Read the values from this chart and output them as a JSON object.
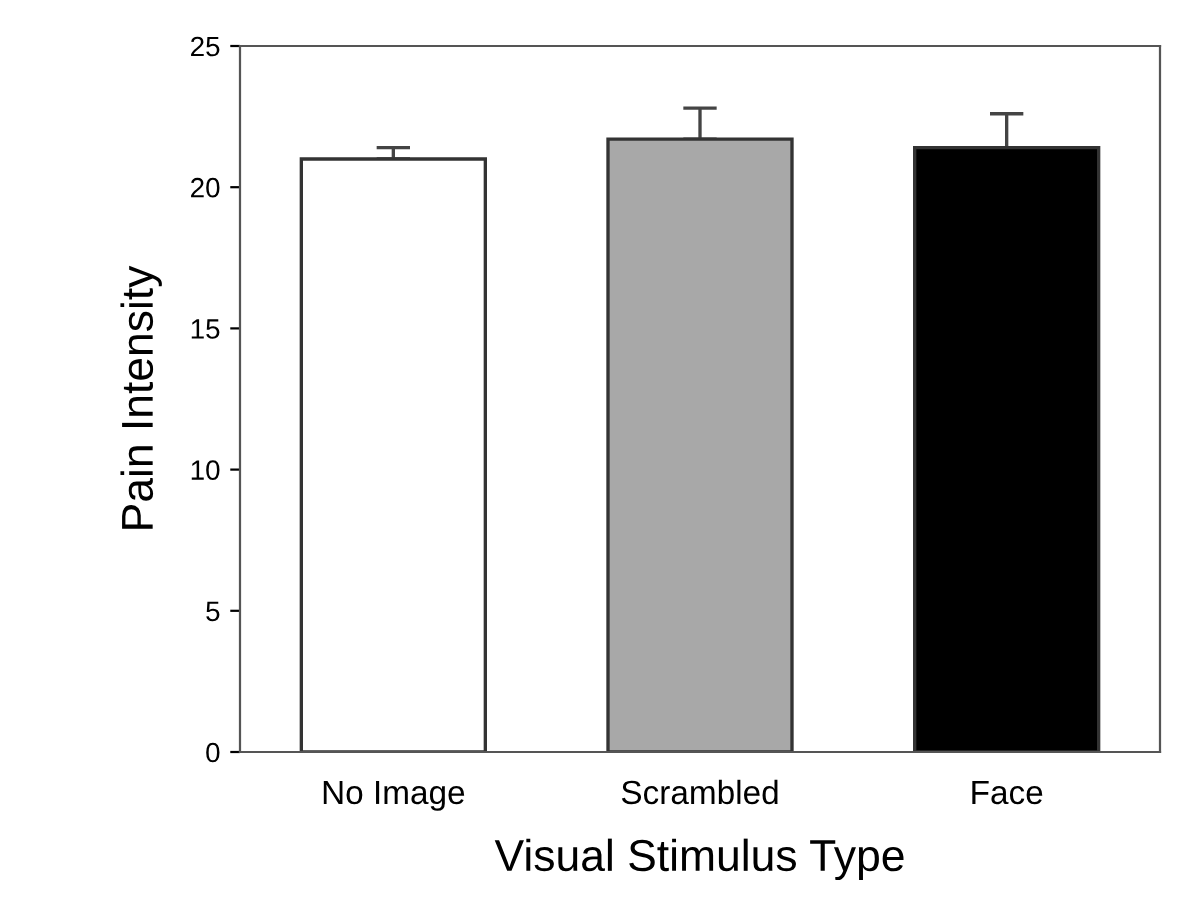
{
  "chart_data": {
    "type": "bar",
    "xlabel": "Visual Stimulus Type",
    "ylabel": "Pain Intensity",
    "categories": [
      "No Image",
      "Scrambled",
      "Face"
    ],
    "values": [
      21.0,
      21.7,
      21.4
    ],
    "errors": [
      [
        21.0,
        21.4
      ],
      [
        21.7,
        22.8
      ],
      [
        21.4,
        22.6
      ]
    ],
    "colors": [
      "#ffffff",
      "#a8a8a8",
      "#000000"
    ],
    "ylim": [
      0,
      25
    ],
    "yticks": [
      0,
      5,
      10,
      15,
      20,
      25
    ],
    "grid": false,
    "legend": false
  }
}
